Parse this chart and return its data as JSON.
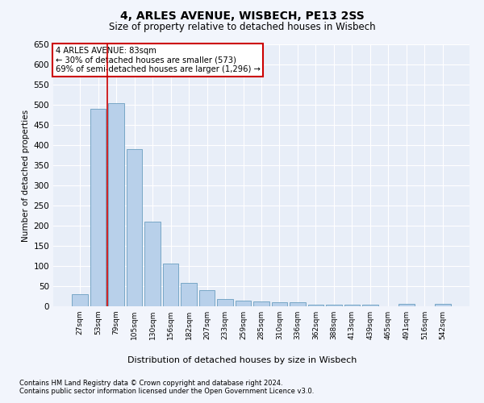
{
  "title": "4, ARLES AVENUE, WISBECH, PE13 2SS",
  "subtitle": "Size of property relative to detached houses in Wisbech",
  "xlabel": "Distribution of detached houses by size in Wisbech",
  "ylabel": "Number of detached properties",
  "categories": [
    "27sqm",
    "53sqm",
    "79sqm",
    "105sqm",
    "130sqm",
    "156sqm",
    "182sqm",
    "207sqm",
    "233sqm",
    "259sqm",
    "285sqm",
    "310sqm",
    "336sqm",
    "362sqm",
    "388sqm",
    "413sqm",
    "439sqm",
    "465sqm",
    "491sqm",
    "516sqm",
    "542sqm"
  ],
  "values": [
    30,
    490,
    505,
    390,
    210,
    107,
    59,
    40,
    19,
    15,
    12,
    10,
    10,
    5,
    5,
    5,
    5,
    1,
    6,
    1,
    6
  ],
  "bar_color": "#b8d0ea",
  "bar_edge_color": "#6a9ec0",
  "vline_x_index": 2,
  "vline_color": "#cc0000",
  "annotation_text": "4 ARLES AVENUE: 83sqm\n← 30% of detached houses are smaller (573)\n69% of semi-detached houses are larger (1,296) →",
  "annotation_box_color": "#cc0000",
  "ylim": [
    0,
    650
  ],
  "yticks": [
    0,
    50,
    100,
    150,
    200,
    250,
    300,
    350,
    400,
    450,
    500,
    550,
    600,
    650
  ],
  "plot_bg_color": "#e8eef8",
  "fig_bg_color": "#f2f5fc",
  "grid_color": "#ffffff",
  "footer_line1": "Contains HM Land Registry data © Crown copyright and database right 2024.",
  "footer_line2": "Contains public sector information licensed under the Open Government Licence v3.0."
}
